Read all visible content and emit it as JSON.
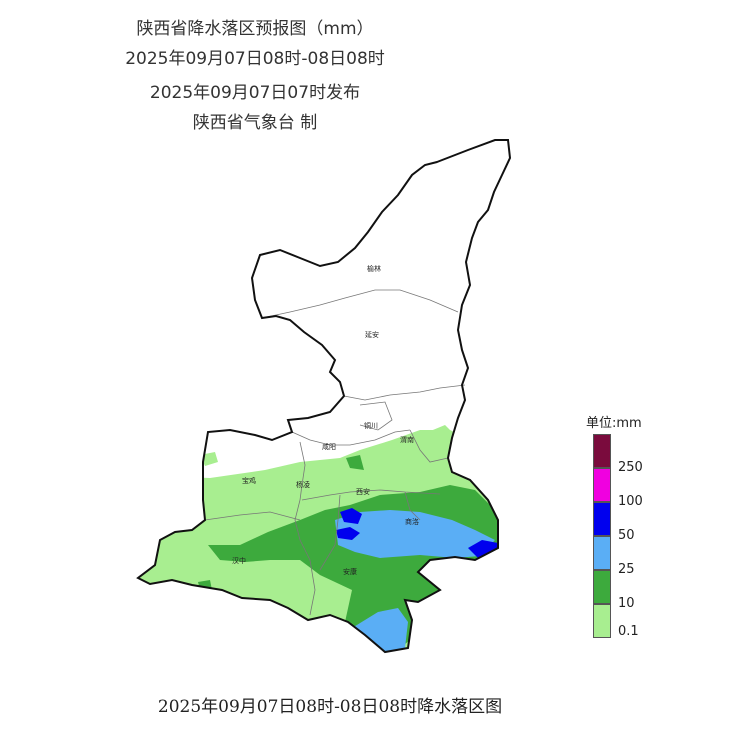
{
  "title": {
    "line1": "陕西省降水落区预报图（mm）",
    "line2": "2025年09月07日08时-08日08时",
    "line3": "2025年09月07日07时发布",
    "line4": "陕西省气象台 制"
  },
  "cities": {
    "yulin": "榆林",
    "yanan": "延安",
    "tongchuan": "铜川",
    "xianyang": "咸阳",
    "weinan": "渭南",
    "baoji": "宝鸡",
    "yangling": "杨凌",
    "xian": "西安",
    "shangluo": "商洛",
    "hanzhong": "汉中",
    "ankang": "安康"
  },
  "legend": {
    "title": "单位:mm",
    "levels": [
      {
        "label": "250",
        "color": "#7a0b3d"
      },
      {
        "label": "100",
        "color": "#f000e0"
      },
      {
        "label": "50",
        "color": "#0000ee"
      },
      {
        "label": "25",
        "color": "#5aaef5"
      },
      {
        "label": "10",
        "color": "#3daa3d"
      },
      {
        "label": "0.1",
        "color": "#a8ee90"
      }
    ]
  },
  "footer": "2025年09月07日08时-08日08时降水落区图"
}
